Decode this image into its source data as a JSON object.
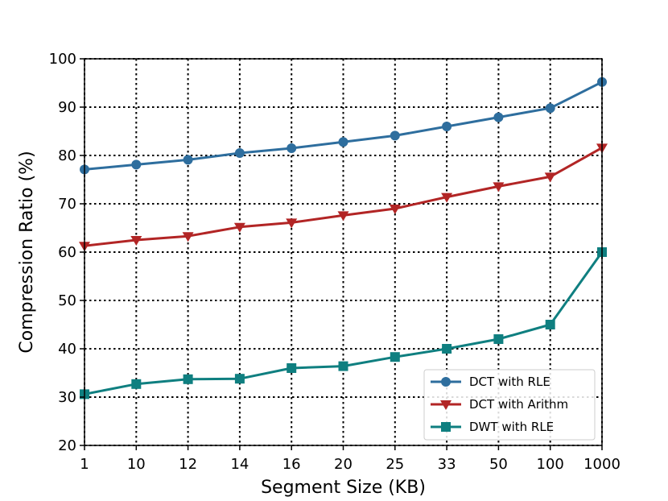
{
  "chart_data": {
    "type": "line",
    "title": "",
    "xlabel": "Segment Size (KB)",
    "ylabel": "Compression Ratio (%)",
    "categories": [
      "1",
      "10",
      "12",
      "14",
      "16",
      "20",
      "25",
      "33",
      "50",
      "100",
      "1000"
    ],
    "ylim": [
      20,
      100
    ],
    "yticks": [
      20,
      30,
      40,
      50,
      60,
      70,
      80,
      90,
      100
    ],
    "grid": true,
    "legend_position": "lower-right",
    "series": [
      {
        "name": "DCT with RLE",
        "color": "#2e6e9e",
        "marker": "circle",
        "values": [
          77.1,
          78.1,
          79.1,
          80.5,
          81.5,
          82.8,
          84.1,
          86.0,
          87.9,
          89.8,
          95.2
        ]
      },
      {
        "name": "DCT with Arithm",
        "color": "#b22525",
        "marker": "triangle-down",
        "values": [
          61.3,
          62.5,
          63.3,
          65.2,
          66.1,
          67.6,
          69.0,
          71.4,
          73.6,
          75.6,
          81.6
        ]
      },
      {
        "name": "DWT with RLE",
        "color": "#0f7f80",
        "marker": "square",
        "values": [
          30.6,
          32.7,
          33.7,
          33.8,
          36.0,
          36.4,
          38.3,
          40.0,
          42.0,
          45.0,
          60.0
        ]
      }
    ]
  }
}
